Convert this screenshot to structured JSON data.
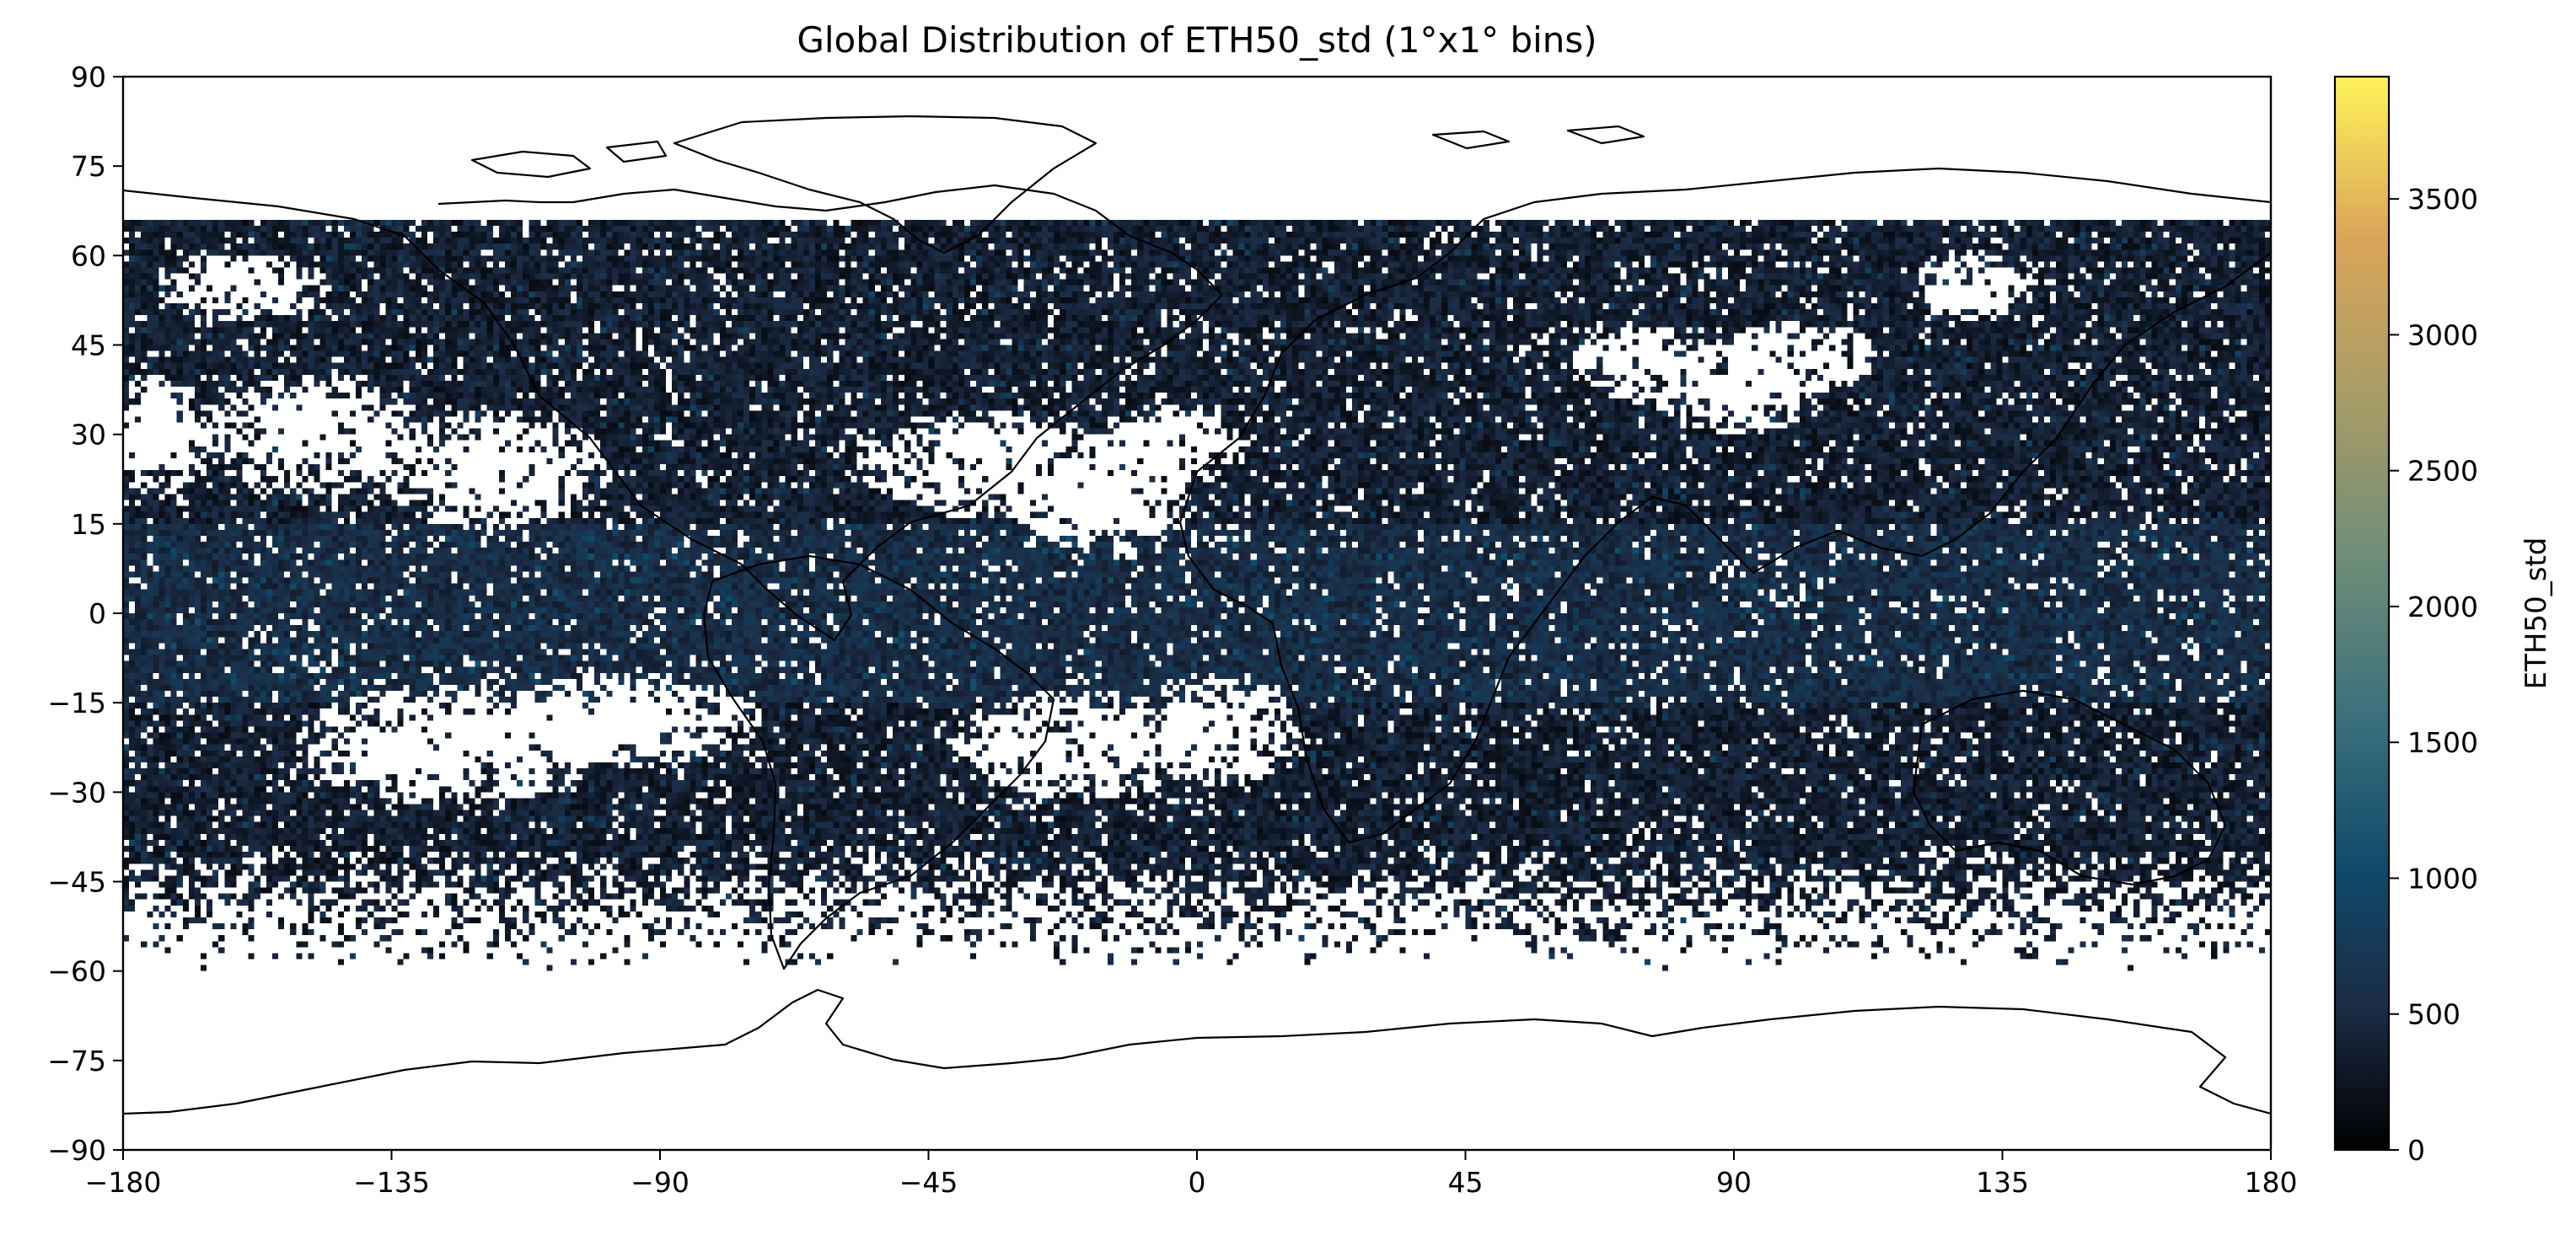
{
  "chart_data": {
    "type": "heatmap",
    "title": "Global Distribution of ETH50_std (1°x1° bins)",
    "xlabel": "",
    "ylabel": "",
    "xlim": [
      -180,
      180
    ],
    "ylim": [
      -90,
      90
    ],
    "x_ticks": [
      "−180",
      "−135",
      "−90",
      "−45",
      "0",
      "45",
      "90",
      "135",
      "180"
    ],
    "y_ticks": [
      "90",
      "75",
      "60",
      "45",
      "30",
      "15",
      "0",
      "−15",
      "−30",
      "−45",
      "−60",
      "−75",
      "−90"
    ],
    "bin_size_deg": 1,
    "data_lat_range": [
      -60,
      66
    ],
    "colorbar": {
      "label": "ETH50_std",
      "range": [
        0,
        3950
      ],
      "ticks": [
        "0",
        "500",
        "1000",
        "1500",
        "2000",
        "2500",
        "3000",
        "3500"
      ],
      "colormap": "cividis-like (black → dark blue → teal → yellow)",
      "colors": [
        "#000000",
        "#1b2b44",
        "#0e4a6a",
        "#3a6f7c",
        "#6e8d78",
        "#a89c66",
        "#dba55a",
        "#fff35a"
      ]
    },
    "coastline_color": "#000000",
    "empty_bin_color": "#ffffff"
  }
}
